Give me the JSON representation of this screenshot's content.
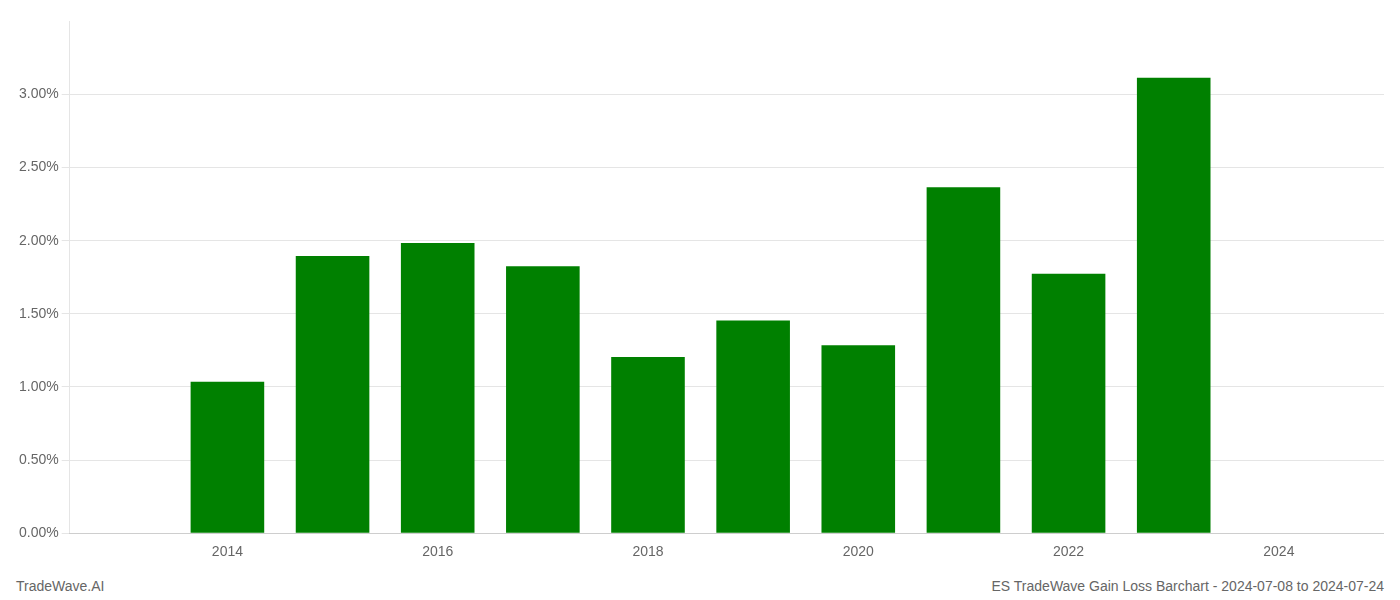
{
  "chart_data": {
    "type": "bar",
    "title": "ES TradeWave Gain Loss Barchart - 2024-07-08 to 2024-07-24",
    "annotations": [
      "TradeWave.AI"
    ],
    "x": [
      2014,
      2015,
      2016,
      2017,
      2018,
      2019,
      2020,
      2021,
      2022,
      2023
    ],
    "values": [
      0.01035,
      0.01895,
      0.01985,
      0.01825,
      0.01205,
      0.01455,
      0.01285,
      0.02365,
      0.01775,
      0.03115
    ],
    "color": "#008000",
    "xlim": [
      2012.5,
      2025.0
    ],
    "xticks": [
      2014,
      2016,
      2018,
      2020,
      2022,
      2024
    ],
    "ylim": [
      0,
      0.035
    ],
    "yticks": [
      {
        "value": 0.0,
        "label": "0.00%"
      },
      {
        "value": 0.005,
        "label": "0.50%"
      },
      {
        "value": 0.01,
        "label": "1.00%"
      },
      {
        "value": 0.015,
        "label": "1.50%"
      },
      {
        "value": 0.02,
        "label": "2.00%"
      },
      {
        "value": 0.025,
        "label": "2.50%"
      },
      {
        "value": 0.03,
        "label": "3.00%"
      }
    ],
    "grid": true
  }
}
